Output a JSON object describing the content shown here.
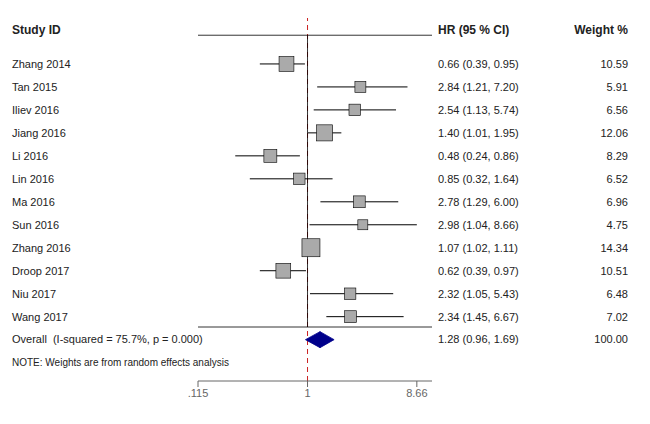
{
  "chart_data": {
    "type": "forest",
    "categories": [
      "Zhang 2014",
      "Tan 2015",
      "Iliev 2016",
      "Jiang 2016",
      "Li 2016",
      "Lin 2016",
      "Ma 2016",
      "Sun 2016",
      "Zhang 2016",
      "Droop 2017",
      "Niu 2017",
      "Wang 2017"
    ],
    "values": [
      0.66,
      2.84,
      2.54,
      1.4,
      0.48,
      0.85,
      2.78,
      2.98,
      1.07,
      0.62,
      2.32,
      2.34
    ],
    "ci_low": [
      0.39,
      1.21,
      1.13,
      1.01,
      0.24,
      0.32,
      1.29,
      1.04,
      1.02,
      0.39,
      1.05,
      1.45
    ],
    "ci_high": [
      0.95,
      7.2,
      5.74,
      1.95,
      0.86,
      1.64,
      6.0,
      8.66,
      1.11,
      0.97,
      5.43,
      6.67
    ],
    "weights": [
      10.59,
      5.91,
      6.56,
      12.06,
      8.29,
      6.52,
      6.96,
      4.75,
      14.34,
      10.51,
      6.48,
      7.02
    ],
    "value_labels": [
      "0.66 (0.39, 0.95)",
      "2.84 (1.21, 7.20)",
      "2.54 (1.13, 5.74)",
      "1.40 (1.01, 1.95)",
      "0.48 (0.24, 0.86)",
      "0.85 (0.32, 1.64)",
      "2.78 (1.29, 6.00)",
      "2.98 (1.04, 8.66)",
      "1.07 (1.02, 1.11)",
      "0.62 (0.39, 0.97)",
      "2.32 (1.05, 5.43)",
      "2.34 (1.45, 6.67)"
    ],
    "overall": {
      "name": "Overall  (I-squared = 75.7%, p = 0.000)",
      "value": 1.28,
      "ci_low": 0.96,
      "ci_high": 1.69,
      "value_label": "1.28 (0.96, 1.69)",
      "weight_label": "100.00"
    },
    "column_titles": [
      "Study ID",
      "HR (95 % CI)",
      "Weight %"
    ],
    "note": "NOTE: Weights are from random effects analysis",
    "log": "x",
    "xlim": [
      0.115,
      11.6817
    ],
    "xticks": [
      {
        "value": 0.115,
        "label": ".115"
      },
      1,
      {
        "value": 8.66,
        "label": "8.66"
      }
    ],
    "reference_line": {
      "x": 1,
      "color": "#cc2222"
    },
    "box_color": "#aaaaaa",
    "diamond_color": "#00008b"
  }
}
